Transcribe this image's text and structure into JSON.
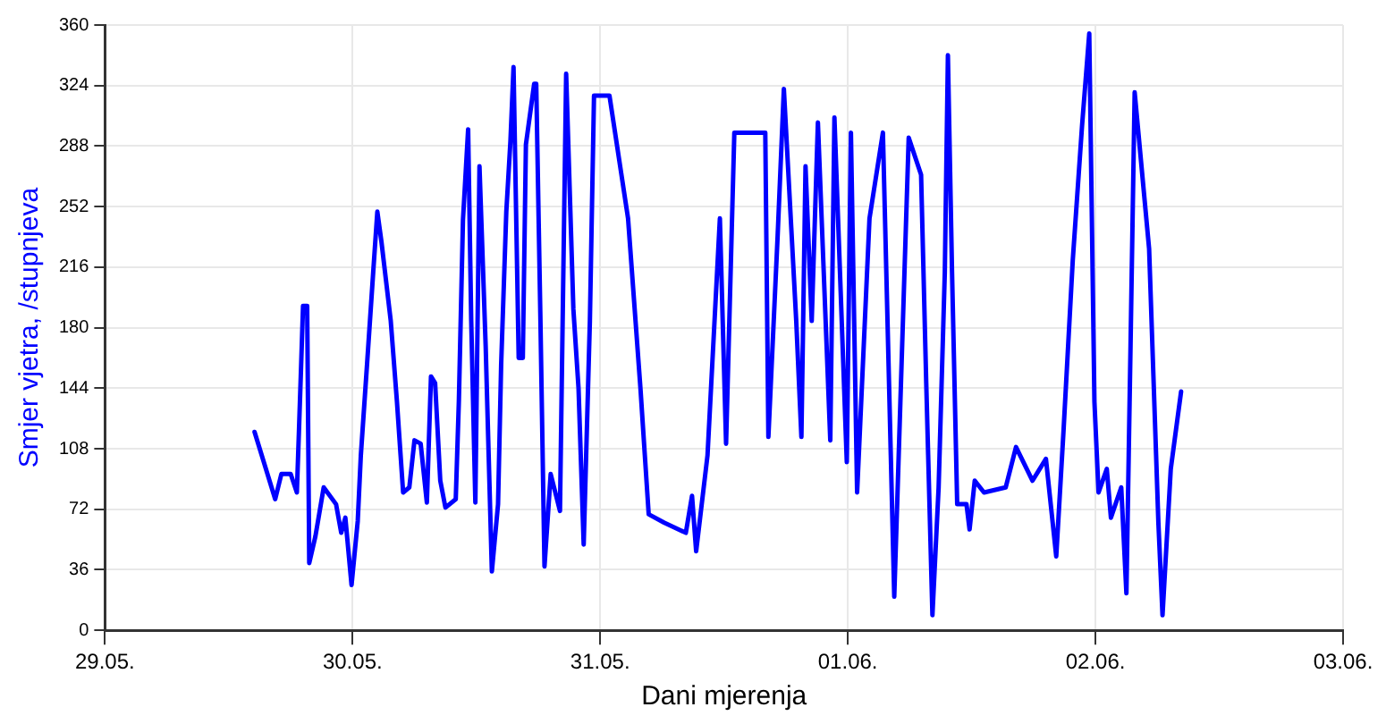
{
  "chart_data": {
    "type": "line",
    "xlabel": "Dani mjerenja",
    "ylabel": "Smjer vjetra, /stupnjeva",
    "xlim": [
      "--05-29",
      "--06-03"
    ],
    "xticks": [
      {
        "value": "--05-29",
        "label": "29.05."
      },
      {
        "value": "--05-30",
        "label": "30.05."
      },
      {
        "value": "--05-31",
        "label": "31.05."
      },
      {
        "value": "--06-01",
        "label": "01.06."
      },
      {
        "value": "--06-02",
        "label": "02.06."
      },
      {
        "value": "--06-03",
        "label": "03.06."
      }
    ],
    "ylim": [
      0,
      360
    ],
    "yticks": [
      0,
      36,
      72,
      108,
      144,
      180,
      216,
      252,
      288,
      324,
      360
    ],
    "grid": true,
    "legend": false,
    "marker": "none",
    "line_style": "solid",
    "series": [
      {
        "color": "#0000ff",
        "x": [
          "--05-29T14:30",
          "--05-29T16:30",
          "--05-29T17:06",
          "--05-29T18:00",
          "--05-29T18:36",
          "--05-29T18:48",
          "--05-29T19:00",
          "--05-29T19:12",
          "--05-29T19:36",
          "--05-29T19:48",
          "--05-29T20:24",
          "--05-29T21:12",
          "--05-29T22:24",
          "--05-29T22:54",
          "--05-29T23:18",
          "--05-29T23:54",
          "--05-30T00:30",
          "--05-30T00:48",
          "--05-30T01:24",
          "--05-30T02:00",
          "--05-30T02:24",
          "--05-30T02:48",
          "--05-30T03:42",
          "--05-30T04:18",
          "--05-30T04:54",
          "--05-30T05:30",
          "--05-30T06:00",
          "--05-30T06:36",
          "--05-30T07:12",
          "--05-30T07:36",
          "--05-30T08:00",
          "--05-30T08:30",
          "--05-30T09:00",
          "--05-30T10:00",
          "--05-30T10:18",
          "--05-30T10:42",
          "--05-30T11:12",
          "--05-30T11:30",
          "--05-30T11:54",
          "--05-30T12:18",
          "--05-30T12:54",
          "--05-30T13:30",
          "--05-30T14:06",
          "--05-30T14:24",
          "--05-30T14:54",
          "--05-30T15:18",
          "--05-30T15:36",
          "--05-30T16:06",
          "--05-30T16:30",
          "--05-30T16:48",
          "--05-30T17:36",
          "--05-30T17:48",
          "--05-30T18:12",
          "--05-30T18:36",
          "--05-30T19:12",
          "--05-30T20:06",
          "--05-30T20:42",
          "--05-30T21:24",
          "--05-30T21:54",
          "--05-30T22:24",
          "--05-30T23:00",
          "--05-30T23:24",
          "--05-31T00:54",
          "--05-31T02:42",
          "--05-31T03:54",
          "--05-31T04:42",
          "--05-31T06:12",
          "--05-31T08:18",
          "--05-31T08:54",
          "--05-31T09:18",
          "--05-31T10:24",
          "--05-31T11:36",
          "--05-31T12:12",
          "--05-31T13:00",
          "--05-31T16:00",
          "--05-31T16:18",
          "--05-31T17:12",
          "--05-31T17:48",
          "--05-31T19:00",
          "--05-31T19:30",
          "--05-31T19:54",
          "--05-31T20:30",
          "--05-31T21:06",
          "--05-31T22:18",
          "--05-31T22:42",
          "--05-31T23:54",
          "--06-01T00:18",
          "--06-01T00:54",
          "--06-01T02:06",
          "--06-01T03:24",
          "--06-01T04:30",
          "--06-01T05:54",
          "--06-01T07:06",
          "--06-01T07:36",
          "--06-01T08:12",
          "--06-01T08:48",
          "--06-01T09:24",
          "--06-01T09:42",
          "--06-01T10:06",
          "--06-01T10:36",
          "--06-01T11:30",
          "--06-01T11:48",
          "--06-01T12:18",
          "--06-01T13:12",
          "--06-01T15:18",
          "--06-01T16:18",
          "--06-01T17:54",
          "--06-01T19:12",
          "--06-01T20:12",
          "--06-01T20:54",
          "--06-01T21:48",
          "--06-01T22:42",
          "--06-01T23:24",
          "--06-01T23:54",
          "--06-02T00:18",
          "--06-02T01:06",
          "--06-02T01:30",
          "--06-02T02:30",
          "--06-02T03:00",
          "--06-02T03:24",
          "--06-02T03:48",
          "--06-02T05:12",
          "--06-02T06:06",
          "--06-02T06:30",
          "--06-02T07:18",
          "--06-02T08:18"
        ],
        "values": [
          118,
          78,
          93,
          93,
          82,
          118,
          155,
          193,
          193,
          40,
          56,
          85,
          75,
          58,
          67,
          27,
          65,
          104,
          158,
          213,
          249,
          231,
          184,
          136,
          82,
          85,
          113,
          111,
          76,
          151,
          147,
          89,
          73,
          78,
          136,
          244,
          298,
          184,
          76,
          276,
          169,
          35,
          75,
          158,
          249,
          291,
          335,
          162,
          162,
          289,
          325,
          325,
          187,
          38,
          93,
          71,
          331,
          191,
          144,
          51,
          184,
          318,
          318,
          245,
          144,
          69,
          64,
          58,
          80,
          47,
          104,
          245,
          111,
          296,
          296,
          115,
          235,
          322,
          184,
          115,
          276,
          184,
          302,
          113,
          305,
          100,
          296,
          82,
          245,
          296,
          20,
          293,
          271,
          147,
          9,
          85,
          213,
          342,
          213,
          75,
          75,
          60,
          89,
          82,
          85,
          109,
          89,
          102,
          44,
          118,
          220,
          300,
          355,
          136,
          82,
          96,
          67,
          85,
          22,
          169,
          320,
          227,
          64,
          9,
          96,
          142
        ]
      }
    ]
  }
}
